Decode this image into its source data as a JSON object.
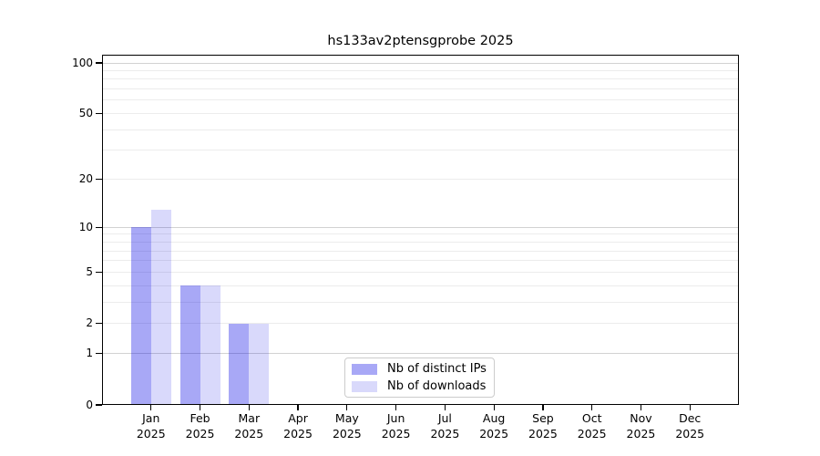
{
  "title": "hs133av2ptensgprobe 2025",
  "chart_data": {
    "type": "bar",
    "title": "hs133av2ptensgprobe 2025",
    "xlabel": "",
    "ylabel": "",
    "year": "2025",
    "categories": [
      "Jan",
      "Feb",
      "Mar",
      "Apr",
      "May",
      "Jun",
      "Jul",
      "Aug",
      "Sep",
      "Oct",
      "Nov",
      "Dec"
    ],
    "series": [
      {
        "name": "Nb of distinct IPs",
        "values": [
          10,
          4,
          2,
          0,
          0,
          0,
          0,
          0,
          0,
          0,
          0,
          0
        ],
        "color": "#a8a8f6",
        "base_color": "#0000e6",
        "alpha": 0.34
      },
      {
        "name": "Nb of downloads",
        "values": [
          13,
          4,
          2,
          0,
          0,
          0,
          0,
          0,
          0,
          0,
          0,
          0
        ],
        "color": "#d9d9fb",
        "base_color": "#0000e6",
        "alpha": 0.15
      }
    ],
    "yscale": "log1p",
    "ylim": [
      0,
      100
    ],
    "yticks": [
      100,
      50,
      20,
      10,
      5,
      2,
      1,
      0
    ],
    "ytick_labels": [
      "100",
      "50",
      "20",
      "10",
      "5",
      "2",
      "1",
      "0"
    ],
    "gridlines": {
      "major": [
        1,
        10,
        100
      ],
      "minor": [
        2,
        3,
        4,
        5,
        6,
        7,
        8,
        9,
        20,
        30,
        40,
        50,
        60,
        70,
        80,
        90
      ]
    },
    "grid": true,
    "legend_position": "lower center",
    "colors": {
      "background": "#ffffff",
      "spine": "#000000",
      "grid_major": "#d2d2d2",
      "grid_minor": "#ececec",
      "legend_border": "#cccccc"
    }
  }
}
